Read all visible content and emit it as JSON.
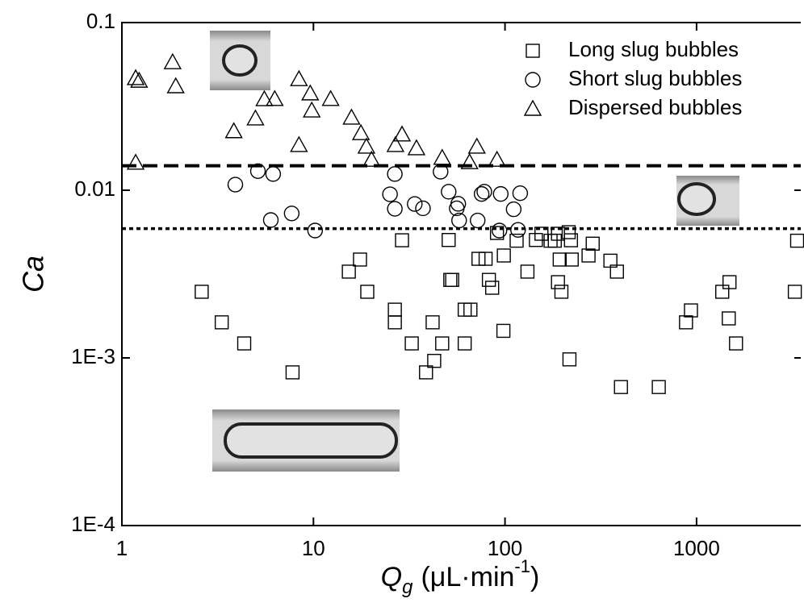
{
  "chart_data": {
    "type": "scatter",
    "x_label": {
      "symbol": "Q",
      "subscript": "g",
      "unit": "(μL·min",
      "superscript": "-1",
      "end": ")"
    },
    "y_label": "Ca",
    "log_x": true,
    "log_y": true,
    "xlim": [
      1,
      3500
    ],
    "ylim": [
      0.0001,
      0.1
    ],
    "xticks": [
      1,
      10,
      100,
      1000
    ],
    "yticks": [
      {
        "value": 0.0001,
        "label": "1E-4"
      },
      {
        "value": 0.001,
        "label": "1E-3"
      },
      0.01,
      0.1
    ],
    "legend": "top-right",
    "reference_lines": [
      {
        "value": 0.014,
        "style": "dashed"
      },
      {
        "value": 0.0059,
        "style": "dotted"
      }
    ],
    "series": [
      {
        "name": "Long slug bubbles",
        "marker": "square",
        "color": "#000000",
        "x": [
          2.61,
          3.32,
          4.35,
          7.78,
          15.3,
          17.5,
          19.1,
          26.6,
          26.6,
          29.0,
          32.6,
          38.7,
          41.9,
          42.7,
          47,
          50.8,
          51.8,
          53,
          61.6,
          66,
          61.6,
          72.7,
          79.2,
          82.4,
          85.7,
          90.8,
          98.1,
          98.6,
          115,
          131,
          145,
          155,
          173,
          182,
          189,
          189,
          193,
          197,
          215,
          221,
          223,
          217,
          273,
          287,
          355,
          384,
          403,
          635,
          881,
          935,
          1362,
          1486,
          1473,
          1607,
          3258,
          3350
        ],
        "values": [
          0.00248,
          0.00163,
          0.00122,
          0.00082,
          0.00327,
          0.00386,
          0.00248,
          0.00194,
          0.00163,
          0.00503,
          0.00122,
          0.00082,
          0.00163,
          0.00096,
          0.00122,
          0.00505,
          0.00292,
          0.00292,
          0.00194,
          0.00194,
          0.00122,
          0.0039,
          0.0039,
          0.00292,
          0.00262,
          0.00556,
          0.00145,
          0.00408,
          0.005,
          0.00327,
          0.00505,
          0.0055,
          0.005,
          0.005,
          0.0055,
          0.00283,
          0.00386,
          0.00248,
          0.00562,
          0.00503,
          0.00386,
          0.00098,
          0.00408,
          0.0048,
          0.0038,
          0.00327,
          0.00067,
          0.00067,
          0.00163,
          0.00192,
          0.00248,
          0.00283,
          0.00172,
          0.00122,
          0.00248,
          0.005
        ]
      },
      {
        "name": "Short slug bubbles",
        "marker": "circle",
        "color": "#000000",
        "x": [
          3.91,
          5.13,
          6.16,
          5.99,
          7.7,
          10.2,
          26.6,
          25.1,
          26.6,
          33.8,
          37.3,
          46.1,
          50.8,
          56,
          57.6,
          57,
          72,
          75.5,
          78,
          93.5,
          95,
          111,
          120,
          117
        ],
        "values": [
          0.0108,
          0.013,
          0.0125,
          0.00664,
          0.00727,
          0.00575,
          0.0125,
          0.00946,
          0.00775,
          0.00828,
          0.0078,
          0.0129,
          0.0098,
          0.0078,
          0.0066,
          0.0083,
          0.0066,
          0.0095,
          0.0098,
          0.00575,
          0.0095,
          0.0077,
          0.0096,
          0.0058
        ]
      },
      {
        "name": "Dispersed bubbles",
        "marker": "triangle",
        "color": "#000000",
        "x": [
          1.18,
          1.23,
          1.18,
          1.84,
          1.91,
          3.84,
          4.98,
          5.54,
          6.28,
          8.4,
          8.4,
          9.62,
          9.8,
          12.3,
          15.8,
          17.7,
          18.9,
          20.1,
          26.8,
          29,
          34.5,
          47,
          65.3,
          71.3,
          90.8
        ],
        "values": [
          0.0466,
          0.045,
          0.0146,
          0.058,
          0.0417,
          0.0225,
          0.0268,
          0.0349,
          0.035,
          0.046,
          0.0186,
          0.0378,
          0.0299,
          0.035,
          0.0271,
          0.0219,
          0.0182,
          0.0152,
          0.0186,
          0.0215,
          0.0178,
          0.0156,
          0.0147,
          0.0182,
          0.0152
        ]
      }
    ]
  }
}
